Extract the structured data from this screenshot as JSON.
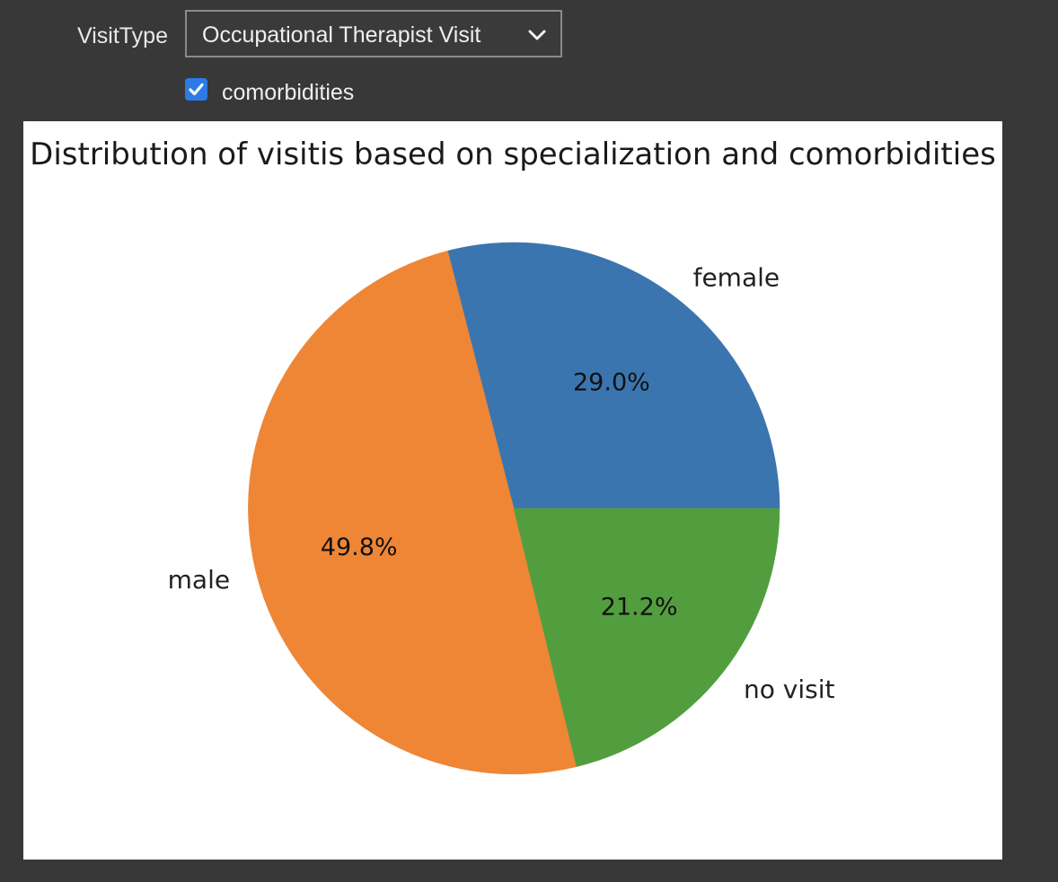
{
  "widgets": {
    "dropdown_label": "VisitType",
    "dropdown_value": "Occupational Therapist Visit",
    "checkbox_label": "comorbidities",
    "checkbox_checked": true
  },
  "chart_data": {
    "type": "pie",
    "title": "Distribution of visitis based on specialization and comorbidities",
    "categories": [
      "female",
      "male",
      "no visit"
    ],
    "values": [
      29.0,
      49.8,
      21.2
    ],
    "labels": [
      "29.0%",
      "49.8%",
      "21.2%"
    ],
    "colors": [
      "#3b75af",
      "#ef8636",
      "#529e3f"
    ],
    "start_angle_deg": 0,
    "direction": "counterclockwise",
    "legend": "none"
  }
}
